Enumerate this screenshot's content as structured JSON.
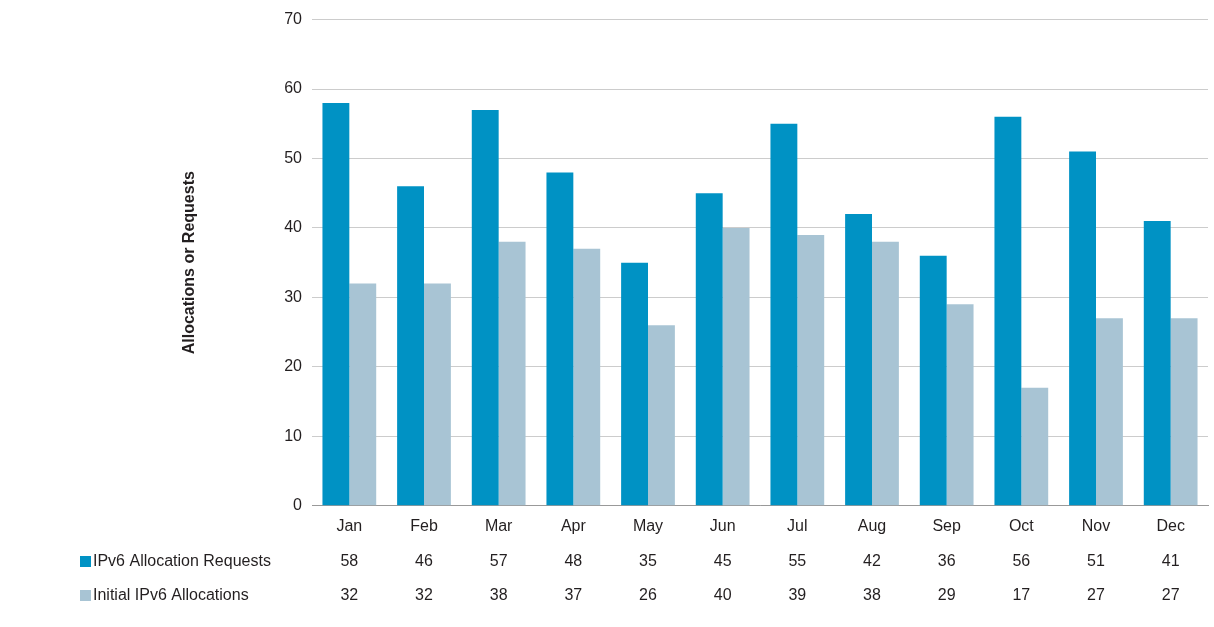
{
  "chart_data": {
    "type": "bar",
    "y_label": "Allocations or Requests",
    "categories": [
      "Jan",
      "Feb",
      "Mar",
      "Apr",
      "May",
      "Jun",
      "Jul",
      "Aug",
      "Sep",
      "Oct",
      "Nov",
      "Dec"
    ],
    "series": [
      {
        "name": "IPv6 Allocation Requests",
        "color": "#0092c4",
        "values": [
          58,
          46,
          57,
          48,
          35,
          45,
          55,
          42,
          36,
          56,
          51,
          41
        ]
      },
      {
        "name": "Initial IPv6 Allocations",
        "color": "#a8c4d4",
        "values": [
          32,
          32,
          38,
          37,
          26,
          40,
          39,
          38,
          29,
          17,
          27,
          27
        ]
      }
    ],
    "ylim": [
      0,
      70
    ],
    "yticks": [
      0,
      10,
      20,
      30,
      40,
      50,
      60,
      70
    ],
    "grid": true,
    "legend": "bottom"
  }
}
